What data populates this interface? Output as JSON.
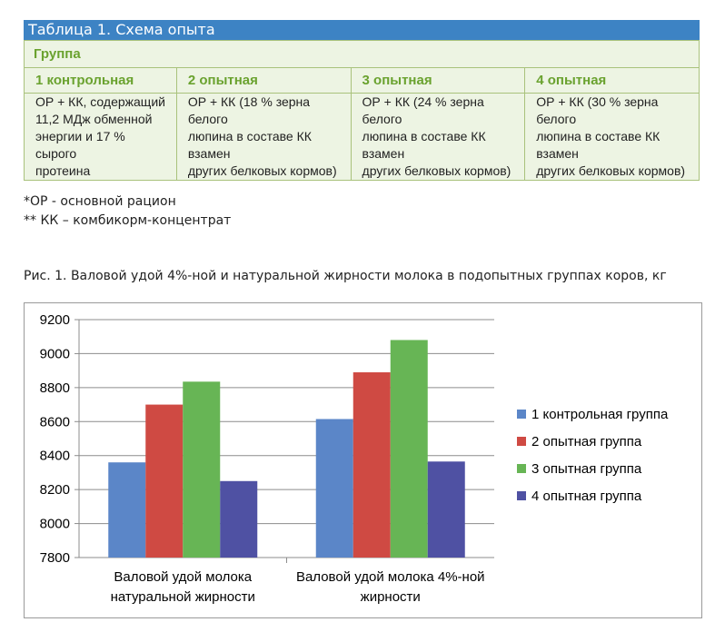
{
  "table": {
    "title": "Таблица 1. Схема опыта",
    "group_header": "Группа",
    "columns": [
      {
        "name": "1 контрольная",
        "description": [
          "ОР + КК, содержащий",
          "11,2 МДж обменной",
          "энергии и 17 % сырого",
          "протеина"
        ]
      },
      {
        "name": "2 опытная",
        "description": [
          "ОР + КК (18 % зерна белого",
          "люпина в составе КК взамен",
          "других белковых кормов)"
        ]
      },
      {
        "name": "3 опытная",
        "description": [
          "ОР + КК (24 % зерна белого",
          "люпина в составе КК взамен",
          "других белковых кормов)"
        ]
      },
      {
        "name": "4 опытная",
        "description": [
          "ОР + КК (30 % зерна белого",
          "люпина в составе КК взамен",
          "других белковых кормов)"
        ]
      }
    ]
  },
  "notes": {
    "note1": "*ОР - основной рацион",
    "note2": "** КК – комбикорм-концентрат"
  },
  "figure": {
    "caption": "Рис. 1. Валовой удой 4%-ной и натуральной жирности молока в подопытных группах коров, кг"
  },
  "chart_data": {
    "type": "bar",
    "categories": [
      [
        "Валовой удой молока",
        "натуральной жирности"
      ],
      [
        "Валовой удой молока 4%-ной",
        "жирности"
      ]
    ],
    "series": [
      {
        "name": "1 контрольная группа",
        "color": "#5b86c8",
        "values": [
          8360,
          8615
        ]
      },
      {
        "name": "2 опытная группа",
        "color": "#cf4a43",
        "values": [
          8700,
          8890
        ]
      },
      {
        "name": "3 опытная группа",
        "color": "#67b555",
        "values": [
          8835,
          9080
        ]
      },
      {
        "name": "4 опытная группа",
        "color": "#4f51a3",
        "values": [
          8250,
          8365
        ]
      }
    ],
    "ylim": [
      7800,
      9200
    ],
    "yticks": [
      "7800",
      "8000",
      "8200",
      "8400",
      "8600",
      "8800",
      "9000",
      "9200"
    ],
    "grid": true,
    "legend": "right",
    "title": "",
    "xlabel": "",
    "ylabel": ""
  }
}
